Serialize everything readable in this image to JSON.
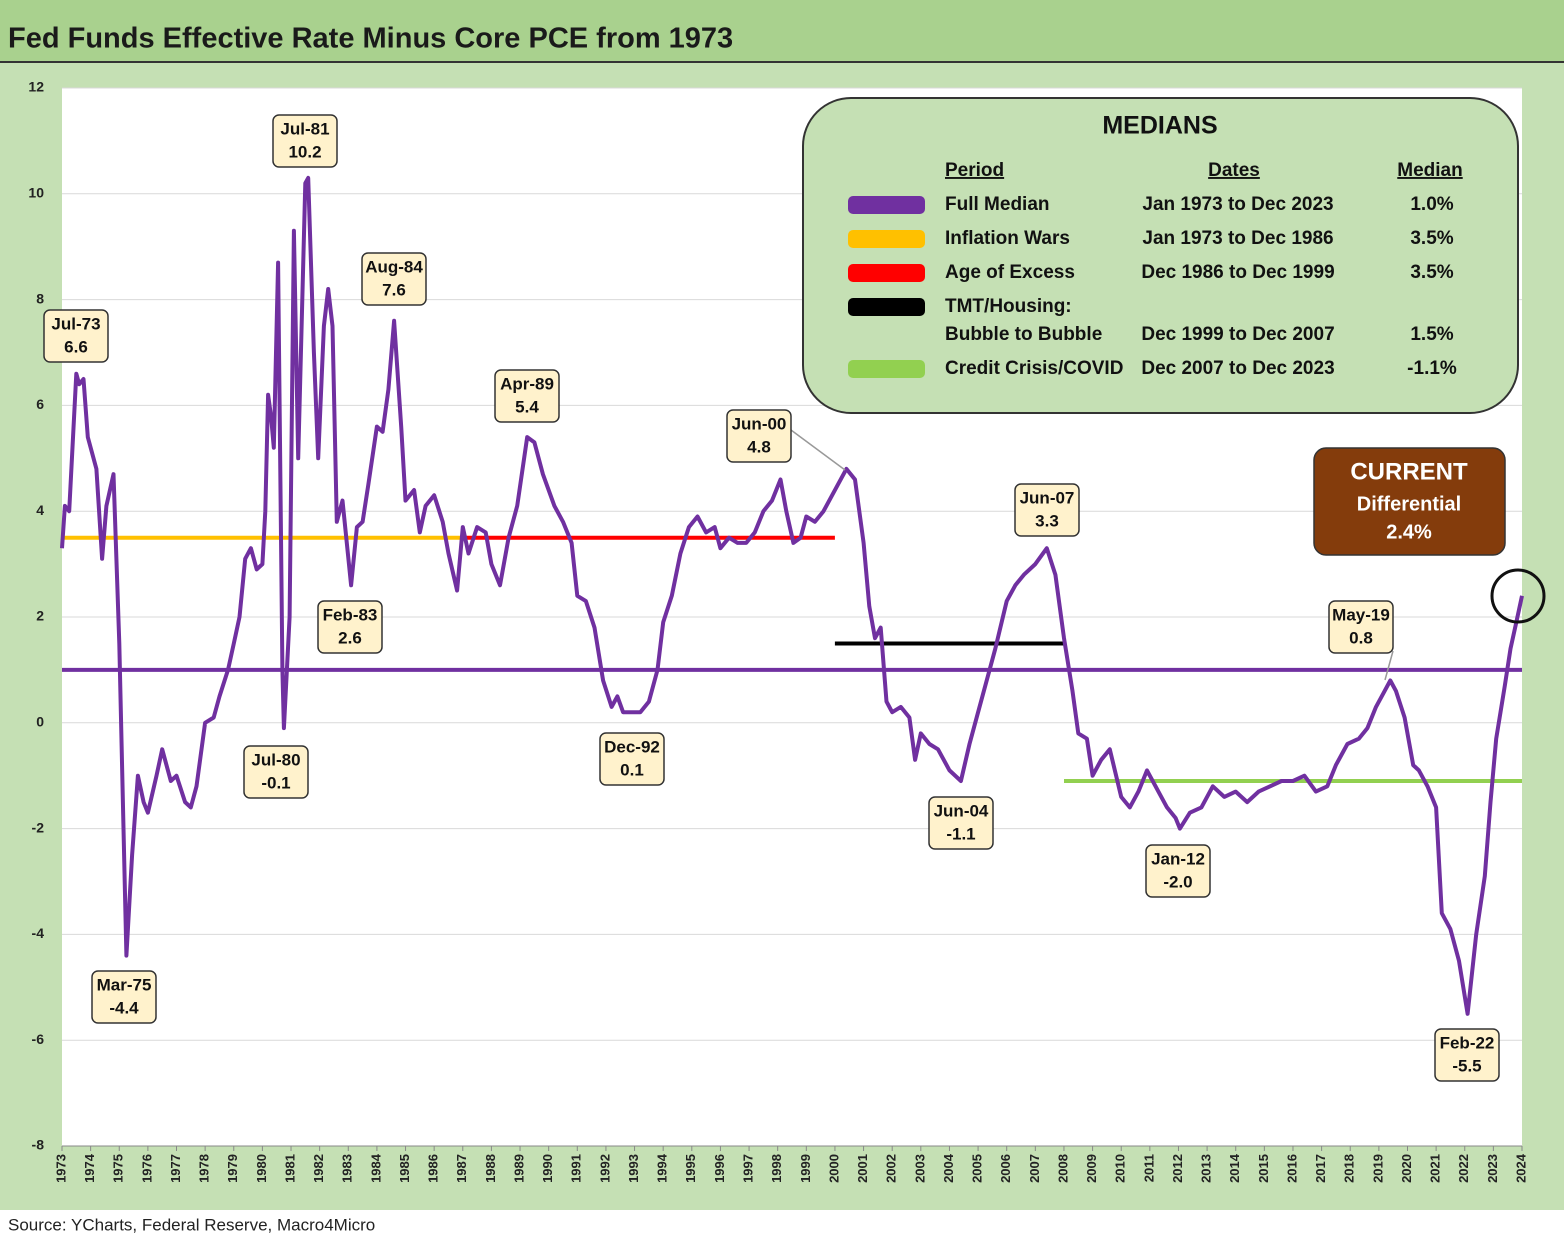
{
  "chart_data": {
    "type": "line",
    "title": "Fed Funds Effective Rate Minus Core PCE from 1973",
    "source": "Source: YCharts, Federal Reserve, Macro4Micro",
    "xlim": [
      1973,
      2024
    ],
    "xticks": [
      1973,
      1974,
      1975,
      1976,
      1977,
      1978,
      1979,
      1980,
      1981,
      1982,
      1983,
      1984,
      1985,
      1986,
      1987,
      1988,
      1989,
      1990,
      1991,
      1992,
      1993,
      1994,
      1995,
      1996,
      1997,
      1998,
      1999,
      2000,
      2001,
      2002,
      2003,
      2004,
      2005,
      2006,
      2007,
      2008,
      2009,
      2010,
      2011,
      2012,
      2013,
      2014,
      2015,
      2016,
      2017,
      2018,
      2019,
      2020,
      2021,
      2022,
      2023,
      2024
    ],
    "ylim": [
      -8,
      12
    ],
    "yticks": [
      -8,
      -6,
      -4,
      -2,
      0,
      2,
      4,
      6,
      8,
      10,
      12
    ],
    "grid": true,
    "series": [
      {
        "color": "#7030a0",
        "x": [
          1973.0,
          1973.1,
          1973.25,
          1973.5,
          1973.6,
          1973.75,
          1973.9,
          1974.2,
          1974.4,
          1974.55,
          1974.8,
          1975.0,
          1975.15,
          1975.25,
          1975.45,
          1975.65,
          1975.85,
          1976.0,
          1976.3,
          1976.5,
          1976.8,
          1977.0,
          1977.3,
          1977.5,
          1977.7,
          1978.0,
          1978.3,
          1978.5,
          1978.8,
          1979.0,
          1979.2,
          1979.4,
          1979.6,
          1979.8,
          1980.0,
          1980.1,
          1980.2,
          1980.3,
          1980.4,
          1980.55,
          1980.7,
          1980.75,
          1980.95,
          1981.1,
          1981.25,
          1981.5,
          1981.6,
          1981.8,
          1981.95,
          1982.15,
          1982.3,
          1982.45,
          1982.6,
          1982.8,
          1983.1,
          1983.3,
          1983.5,
          1983.7,
          1984.0,
          1984.2,
          1984.4,
          1984.6,
          1984.85,
          1985.0,
          1985.3,
          1985.5,
          1985.7,
          1986.0,
          1986.3,
          1986.5,
          1986.8,
          1987.0,
          1987.2,
          1987.5,
          1987.8,
          1988.0,
          1988.3,
          1988.6,
          1988.9,
          1989.25,
          1989.5,
          1989.8,
          1990.2,
          1990.5,
          1990.8,
          1991.0,
          1991.3,
          1991.6,
          1991.9,
          1992.2,
          1992.4,
          1992.6,
          1992.9,
          1993.2,
          1993.5,
          1993.8,
          1994.0,
          1994.3,
          1994.6,
          1994.9,
          1995.2,
          1995.5,
          1995.8,
          1996.0,
          1996.3,
          1996.6,
          1996.9,
          1997.2,
          1997.5,
          1997.8,
          1998.1,
          1998.3,
          1998.55,
          1998.8,
          1999.0,
          1999.3,
          1999.6,
          1999.9,
          2000.4,
          2000.7,
          2001.0,
          2001.2,
          2001.4,
          2001.6,
          2001.8,
          2002.0,
          2002.3,
          2002.6,
          2002.8,
          2003.0,
          2003.3,
          2003.6,
          2004.0,
          2004.4,
          2004.7,
          2005.0,
          2005.3,
          2005.6,
          2006.0,
          2006.3,
          2006.6,
          2007.0,
          2007.4,
          2007.7,
          2008.0,
          2008.3,
          2008.5,
          2008.8,
          2009.0,
          2009.3,
          2009.6,
          2010.0,
          2010.3,
          2010.6,
          2010.9,
          2011.3,
          2011.6,
          2011.9,
          2012.05,
          2012.4,
          2012.8,
          2013.2,
          2013.6,
          2014.0,
          2014.4,
          2014.8,
          2015.2,
          2015.6,
          2016.0,
          2016.4,
          2016.8,
          2017.2,
          2017.5,
          2017.9,
          2018.3,
          2018.6,
          2018.9,
          2019.2,
          2019.4,
          2019.6,
          2019.9,
          2020.2,
          2020.4,
          2020.7,
          2021.0,
          2021.2,
          2021.5,
          2021.8,
          2022.1,
          2022.4,
          2022.7,
          2022.9,
          2023.1,
          2023.4,
          2023.6,
          2023.8,
          2024.0
        ],
        "values": [
          3.3,
          4.1,
          4.0,
          6.6,
          6.4,
          6.5,
          5.4,
          4.8,
          3.1,
          4.1,
          4.7,
          1.5,
          -2.0,
          -4.4,
          -2.5,
          -1.0,
          -1.5,
          -1.7,
          -1.0,
          -0.5,
          -1.1,
          -1.0,
          -1.5,
          -1.6,
          -1.2,
          0.0,
          0.1,
          0.5,
          1.0,
          1.5,
          2.0,
          3.1,
          3.3,
          2.9,
          3.0,
          4.0,
          6.2,
          5.8,
          5.2,
          8.7,
          1.0,
          -0.1,
          2.0,
          9.3,
          5.0,
          10.2,
          10.3,
          7.0,
          5.0,
          7.5,
          8.2,
          7.5,
          3.8,
          4.2,
          2.6,
          3.7,
          3.8,
          4.5,
          5.6,
          5.5,
          6.3,
          7.6,
          5.6,
          4.2,
          4.4,
          3.6,
          4.1,
          4.3,
          3.8,
          3.2,
          2.5,
          3.7,
          3.2,
          3.7,
          3.6,
          3.0,
          2.6,
          3.5,
          4.1,
          5.4,
          5.3,
          4.7,
          4.1,
          3.8,
          3.4,
          2.4,
          2.3,
          1.8,
          0.8,
          0.3,
          0.5,
          0.2,
          0.2,
          0.2,
          0.4,
          1.0,
          1.9,
          2.4,
          3.2,
          3.7,
          3.9,
          3.6,
          3.7,
          3.3,
          3.5,
          3.4,
          3.4,
          3.6,
          4.0,
          4.2,
          4.6,
          4.0,
          3.4,
          3.5,
          3.9,
          3.8,
          4.0,
          4.3,
          4.8,
          4.6,
          3.4,
          2.2,
          1.6,
          1.8,
          0.4,
          0.2,
          0.3,
          0.1,
          -0.7,
          -0.2,
          -0.4,
          -0.5,
          -0.9,
          -1.1,
          -0.4,
          0.2,
          0.8,
          1.4,
          2.3,
          2.6,
          2.8,
          3.0,
          3.3,
          2.8,
          1.6,
          0.6,
          -0.2,
          -0.3,
          -1.0,
          -0.7,
          -0.5,
          -1.4,
          -1.6,
          -1.3,
          -0.9,
          -1.3,
          -1.6,
          -1.8,
          -2.0,
          -1.7,
          -1.6,
          -1.2,
          -1.4,
          -1.3,
          -1.5,
          -1.3,
          -1.2,
          -1.1,
          -1.1,
          -1.0,
          -1.3,
          -1.2,
          -0.8,
          -0.4,
          -0.3,
          -0.1,
          0.3,
          0.6,
          0.8,
          0.6,
          0.1,
          -0.8,
          -0.9,
          -1.2,
          -1.6,
          -3.6,
          -3.9,
          -4.5,
          -5.5,
          -4.0,
          -2.9,
          -1.5,
          -0.3,
          0.7,
          1.4,
          1.9,
          2.4
        ]
      },
      {
        "name": "Full Median",
        "color": "#7030a0",
        "x": [
          1973,
          2024
        ],
        "values": [
          1.0,
          1.0
        ],
        "dates": "Jan 1973 to Dec 2023",
        "median_label": "1.0%"
      },
      {
        "name": "Inflation Wars",
        "color": "#ffc000",
        "x": [
          1973,
          1987
        ],
        "values": [
          3.5,
          3.5
        ],
        "dates": "Jan 1973 to Dec 1986",
        "median_label": "3.5%"
      },
      {
        "name": "Age of Excess",
        "color": "#ff0000",
        "x": [
          1987,
          2000
        ],
        "values": [
          3.5,
          3.5
        ],
        "dates": "Dec 1986 to Dec 1999",
        "median_label": "3.5%"
      },
      {
        "name": [
          "TMT/Housing:",
          "Bubble to Bubble"
        ],
        "color": "#000000",
        "x": [
          2000,
          2008
        ],
        "values": [
          1.5,
          1.5
        ],
        "dates": "Dec 1999 to Dec 2007",
        "median_label": "1.5%"
      },
      {
        "name": "Credit Crisis/COVID",
        "color": "#92d050",
        "x": [
          2008,
          2024
        ],
        "values": [
          -1.1,
          -1.1
        ],
        "dates": "Dec 2007 to Dec 2023",
        "median_label": "-1.1%"
      }
    ],
    "medians_box": {
      "title": "MEDIANS",
      "headers": [
        "Period",
        "Dates",
        "Median"
      ]
    },
    "current_box": {
      "title": "CURRENT",
      "subtitle": "Differential",
      "value": 2.4,
      "value_label": "2.4%"
    },
    "annotations": [
      {
        "label": "Jul-73",
        "value": 6.6
      },
      {
        "label": "Mar-75",
        "value": -4.4
      },
      {
        "label": "Jul-80",
        "value": -0.1
      },
      {
        "label": "Jul-81",
        "value": 10.2
      },
      {
        "label": "Feb-83",
        "value": 2.6
      },
      {
        "label": "Aug-84",
        "value": 7.6
      },
      {
        "label": "Apr-89",
        "value": 5.4
      },
      {
        "label": "Dec-92",
        "value": 0.1
      },
      {
        "label": "Jun-00",
        "value": 4.8
      },
      {
        "label": "Jun-04",
        "value": -1.1
      },
      {
        "label": "Jun-07",
        "value": 3.3
      },
      {
        "label": "Jan-12",
        "value": -2,
        "value_label": "-2.0"
      },
      {
        "label": "May-19",
        "value": 0.8
      },
      {
        "label": "Feb-22",
        "value": -5.5
      }
    ]
  }
}
